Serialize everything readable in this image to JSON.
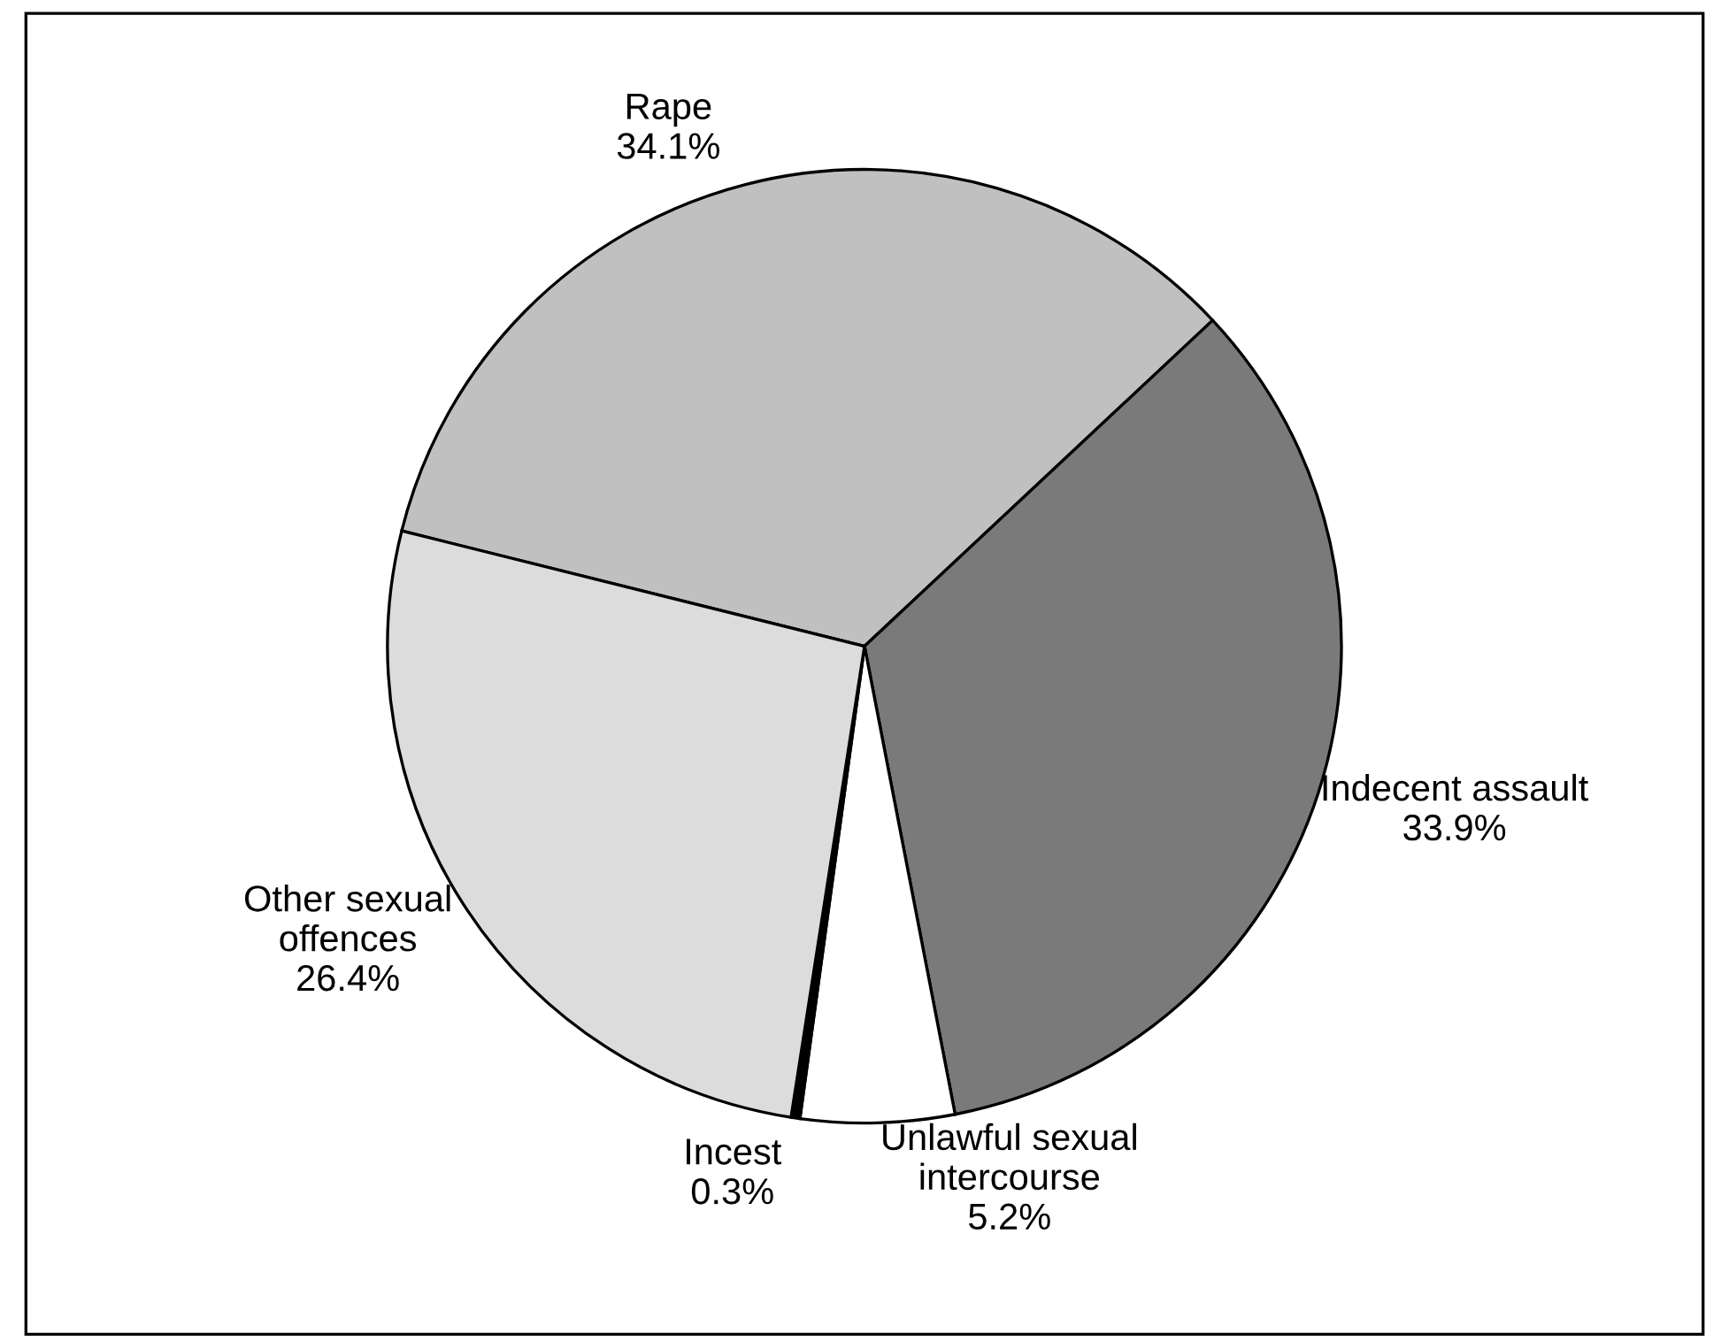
{
  "chart_data": {
    "type": "pie",
    "categories": [
      "Rape",
      "Indecent assault",
      "Unlawful sexual\nintercourse",
      "Incest",
      "Other sexual\noffences"
    ],
    "values": [
      34.1,
      33.9,
      5.2,
      0.3,
      26.4
    ],
    "colors": [
      "#c0c0c0",
      "#7a7a7a",
      "#ffffff",
      "#000000",
      "#dcdcdc"
    ],
    "value_labels": [
      "34.1%",
      "33.9%",
      "5.2%",
      "0.3%",
      "26.4%"
    ]
  }
}
